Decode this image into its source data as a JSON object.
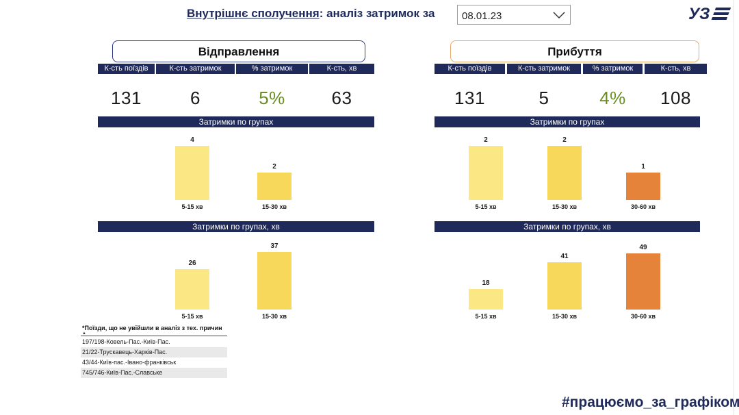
{
  "header": {
    "title_link": "Внутрішнє сполучення",
    "title_rest": ": аналіз затримок за",
    "date_value": "08.01.23",
    "logo_text": "УЗ"
  },
  "departure": {
    "title": "Відправлення",
    "kpi_headers": [
      "К-сть поїздів",
      "К-сть затримок",
      "% затримок",
      "К-сть, хв"
    ],
    "kpi_values": [
      "131",
      "6",
      "5%",
      "63"
    ],
    "chart1_title": "Затримки по групах",
    "chart2_title": "Затримки по групах, хв"
  },
  "arrival": {
    "title": "Прибуття",
    "kpi_headers": [
      "К-сть поїздів",
      "К-сть затримок",
      "% затримок",
      "К-сть, хв"
    ],
    "kpi_values": [
      "131",
      "5",
      "4%",
      "108"
    ],
    "chart1_title": "Затримки по групах",
    "chart2_title": "Затримки по групах, хв"
  },
  "chart_data": [
    {
      "type": "bar",
      "title": "Затримки по групах",
      "categories": [
        "5-15 хв",
        "15-30 хв"
      ],
      "values": [
        4,
        2
      ],
      "colors": [
        "#fbe885",
        "#f8d85a"
      ],
      "ylim": [
        0,
        4
      ]
    },
    {
      "type": "bar",
      "title": "Затримки по групах, хв",
      "categories": [
        "5-15 хв",
        "15-30 хв"
      ],
      "values": [
        26,
        37
      ],
      "colors": [
        "#fbe885",
        "#f8d85a"
      ],
      "ylim": [
        0,
        37
      ]
    },
    {
      "type": "bar",
      "title": "Затримки по групах",
      "categories": [
        "5-15 хв",
        "15-30 хв",
        "30-60 хв"
      ],
      "values": [
        2,
        2,
        1
      ],
      "colors": [
        "#fbe885",
        "#f8d85a",
        "#e5833a"
      ],
      "ylim": [
        0,
        2
      ]
    },
    {
      "type": "bar",
      "title": "Затримки по групах, хв",
      "categories": [
        "5-15 хв",
        "15-30 хв",
        "30-60 хв"
      ],
      "values": [
        18,
        41,
        49
      ],
      "colors": [
        "#fbe885",
        "#f8d85a",
        "#e5833a"
      ],
      "ylim": [
        0,
        49
      ]
    }
  ],
  "excluded": {
    "title": "*Поїзди, що не увійшли в аналіз з тех. причин",
    "rows": [
      "197/198-Ковель-Пас.-Київ-Пас.",
      "21/22-Трускавець-Харків-Пас.",
      "43/44-Київ-пас.-Івано-франківськ",
      "745/746-Київ-Пас.-Славське"
    ]
  },
  "footer": {
    "hashtag": "#працюємо_за_графіком"
  },
  "colors": {
    "navy": "#1f2a5a",
    "yellow_light": "#fbe885",
    "yellow": "#f8d85a",
    "orange": "#e5833a",
    "green_pct": "#6b8e23"
  }
}
